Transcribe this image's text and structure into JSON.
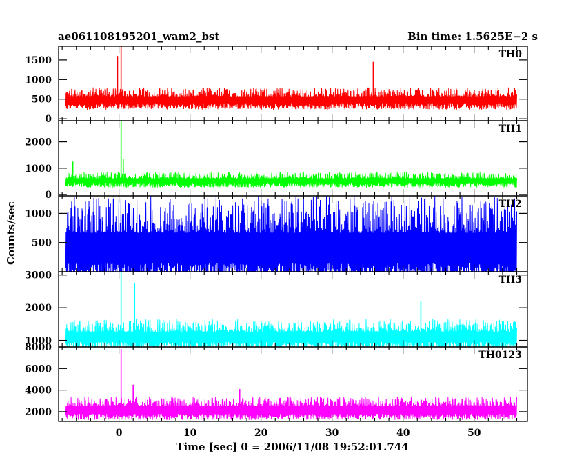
{
  "chart_data": {
    "type": "line",
    "title_left": "ae061108195201_wam2_bst",
    "title_right": "Bin time: 1.5625E−2 s",
    "xlabel": "Time [sec] 0 = 2006/11/08 19:52:01.744",
    "ylabel": "Counts/sec",
    "xlim": [
      -8.5,
      57.5
    ],
    "x_ticks": [
      0,
      10,
      20,
      30,
      40,
      50
    ],
    "x_range_data": [
      -7.5,
      56
    ],
    "panels": [
      {
        "name": "TH0",
        "color": "#ff0000",
        "ylim": [
          -50,
          1850
        ],
        "y_ticks": [
          0,
          500,
          1000,
          1500
        ],
        "baseline": 380,
        "spread": 420,
        "peaks": [
          {
            "x": 0.3,
            "y": 1850
          },
          {
            "x": -0.2,
            "y": 1600
          },
          {
            "x": 35.8,
            "y": 1450
          }
        ]
      },
      {
        "name": "TH1",
        "color": "#00ff00",
        "ylim": [
          -50,
          2800
        ],
        "y_ticks": [
          0,
          1000,
          2000
        ],
        "baseline": 420,
        "spread": 430,
        "peaks": [
          {
            "x": 0.3,
            "y": 2800
          },
          {
            "x": -6.5,
            "y": 1250
          },
          {
            "x": 0.6,
            "y": 1350
          }
        ]
      },
      {
        "name": "TH2",
        "color": "#0000ff",
        "ylim": [
          0,
          1300
        ],
        "y_ticks": [
          500,
          1000
        ],
        "baseline": 150,
        "spread": 1150,
        "peaks": []
      },
      {
        "name": "TH3",
        "color": "#00ffff",
        "ylim": [
          800,
          3100
        ],
        "y_ticks": [
          1000,
          2000,
          3000
        ],
        "baseline": 950,
        "spread": 700,
        "peaks": [
          {
            "x": 0.3,
            "y": 3100
          },
          {
            "x": 2.2,
            "y": 2750
          },
          {
            "x": 42.5,
            "y": 2200
          }
        ]
      },
      {
        "name": "TH0123",
        "color": "#ff00ff",
        "ylim": [
          1100,
          8000
        ],
        "y_ticks": [
          2000,
          4000,
          6000,
          8000
        ],
        "baseline": 1800,
        "spread": 1600,
        "peaks": [
          {
            "x": 0.3,
            "y": 7800
          },
          {
            "x": 2.0,
            "y": 4500
          },
          {
            "x": 17.0,
            "y": 4100
          }
        ]
      }
    ]
  }
}
